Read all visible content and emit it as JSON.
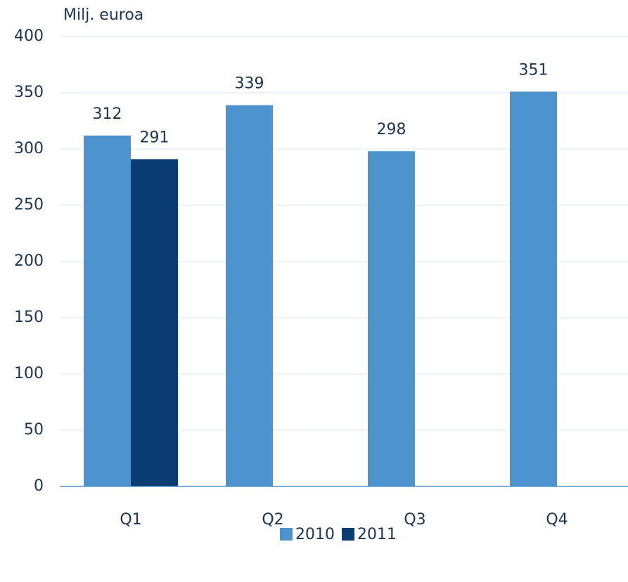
{
  "chart_data": {
    "type": "bar",
    "y_axis_label": "Milj. euroa",
    "categories": [
      "Q1",
      "Q2",
      "Q3",
      "Q4"
    ],
    "series": [
      {
        "name": "2010",
        "color": "#4d94cf",
        "values": [
          312,
          339,
          298,
          351
        ]
      },
      {
        "name": "2011",
        "color": "#0b3c73",
        "values": [
          291,
          null,
          null,
          null
        ]
      }
    ],
    "ylim": [
      0,
      400
    ],
    "yticks": [
      0,
      50,
      100,
      150,
      200,
      250,
      300,
      350,
      400
    ],
    "grid": true,
    "legend": "bottom"
  }
}
